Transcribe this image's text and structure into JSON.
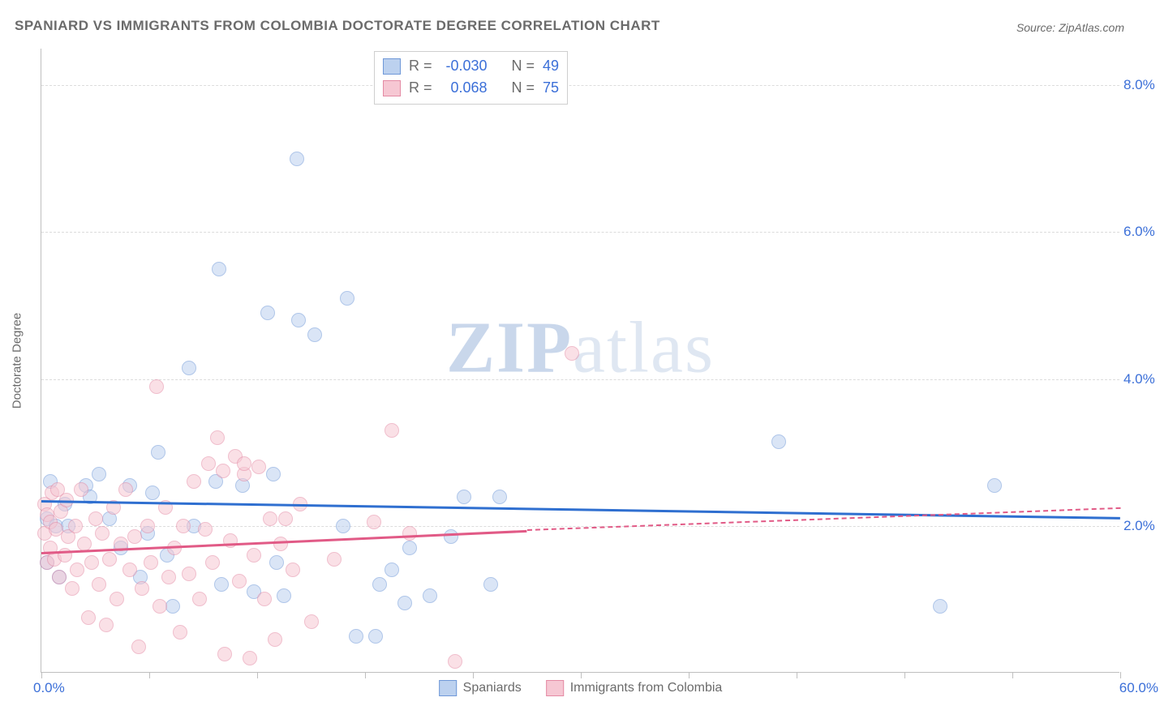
{
  "title": "SPANIARD VS IMMIGRANTS FROM COLOMBIA DOCTORATE DEGREE CORRELATION CHART",
  "source": "Source: ZipAtlas.com",
  "watermark": {
    "bold": "ZIP",
    "light": "atlas"
  },
  "y_axis_title": "Doctorate Degree",
  "chart": {
    "type": "scatter",
    "xlim": [
      0,
      60
    ],
    "ylim": [
      0,
      8.5
    ],
    "x_min_label": "0.0%",
    "x_max_label": "60.0%",
    "x_label_color": "#3b6fd8",
    "y_ticks": [
      {
        "value": 2.0,
        "label": "2.0%"
      },
      {
        "value": 4.0,
        "label": "4.0%"
      },
      {
        "value": 6.0,
        "label": "6.0%"
      },
      {
        "value": 8.0,
        "label": "8.0%"
      }
    ],
    "y_tick_color": "#3b6fd8",
    "x_tick_positions": [
      0,
      6,
      12,
      18,
      24,
      30,
      36,
      42,
      48,
      54,
      60
    ],
    "background_color": "#ffffff",
    "grid_color": "#dcdcdc",
    "marker_radius": 9,
    "marker_opacity": 0.55,
    "series": [
      {
        "name": "Spaniards",
        "fill": "#bcd1ef",
        "stroke": "#6f98d8",
        "trend_color": "#2f6fd0",
        "trend": {
          "x1": 0,
          "y1": 2.35,
          "x2": 60,
          "y2": 2.12
        },
        "stats": {
          "R": "-0.030",
          "N": "49"
        },
        "points": [
          [
            0.3,
            1.5
          ],
          [
            0.3,
            2.1
          ],
          [
            0.5,
            2.6
          ],
          [
            0.8,
            2.0
          ],
          [
            1.0,
            1.3
          ],
          [
            1.3,
            2.3
          ],
          [
            1.5,
            2.0
          ],
          [
            2.5,
            2.55
          ],
          [
            2.7,
            2.4
          ],
          [
            3.2,
            2.7
          ],
          [
            3.8,
            2.1
          ],
          [
            4.4,
            1.7
          ],
          [
            4.9,
            2.55
          ],
          [
            5.5,
            1.3
          ],
          [
            5.9,
            1.9
          ],
          [
            6.2,
            2.45
          ],
          [
            6.5,
            3.0
          ],
          [
            7.0,
            1.6
          ],
          [
            7.3,
            0.9
          ],
          [
            8.2,
            4.15
          ],
          [
            8.5,
            2.0
          ],
          [
            9.7,
            2.6
          ],
          [
            9.9,
            5.5
          ],
          [
            10.0,
            1.2
          ],
          [
            11.2,
            2.55
          ],
          [
            11.8,
            1.1
          ],
          [
            12.6,
            4.9
          ],
          [
            12.9,
            2.7
          ],
          [
            13.1,
            1.5
          ],
          [
            13.5,
            1.05
          ],
          [
            14.2,
            7.0
          ],
          [
            14.3,
            4.8
          ],
          [
            15.2,
            4.6
          ],
          [
            16.8,
            2.0
          ],
          [
            17.0,
            5.1
          ],
          [
            17.5,
            0.5
          ],
          [
            18.6,
            0.5
          ],
          [
            18.8,
            1.2
          ],
          [
            19.5,
            1.4
          ],
          [
            20.2,
            0.95
          ],
          [
            20.5,
            1.7
          ],
          [
            21.6,
            1.05
          ],
          [
            22.8,
            1.85
          ],
          [
            23.5,
            2.4
          ],
          [
            25.0,
            1.2
          ],
          [
            25.5,
            2.4
          ],
          [
            41.0,
            3.15
          ],
          [
            50.0,
            0.9
          ],
          [
            53.0,
            2.55
          ]
        ]
      },
      {
        "name": "Immigrants from Colombia",
        "fill": "#f6c7d3",
        "stroke": "#e48aa4",
        "trend_color": "#e15a86",
        "trend": {
          "x1": 0,
          "y1": 1.65,
          "x2": 27,
          "y2": 1.95
        },
        "trend_dash": {
          "x1": 27,
          "y1": 1.95,
          "x2": 60,
          "y2": 2.25
        },
        "stats": {
          "R": "0.068",
          "N": "75"
        },
        "points": [
          [
            0.2,
            1.9
          ],
          [
            0.2,
            2.3
          ],
          [
            0.3,
            1.5
          ],
          [
            0.3,
            2.15
          ],
          [
            0.5,
            1.7
          ],
          [
            0.5,
            2.05
          ],
          [
            0.6,
            2.45
          ],
          [
            0.7,
            1.55
          ],
          [
            0.8,
            1.95
          ],
          [
            0.9,
            2.5
          ],
          [
            1.0,
            1.3
          ],
          [
            1.1,
            2.2
          ],
          [
            1.3,
            1.6
          ],
          [
            1.4,
            2.35
          ],
          [
            1.5,
            1.85
          ],
          [
            1.7,
            1.15
          ],
          [
            1.9,
            2.0
          ],
          [
            2.0,
            1.4
          ],
          [
            2.2,
            2.5
          ],
          [
            2.4,
            1.75
          ],
          [
            2.6,
            0.75
          ],
          [
            2.8,
            1.5
          ],
          [
            3.0,
            2.1
          ],
          [
            3.2,
            1.2
          ],
          [
            3.4,
            1.9
          ],
          [
            3.6,
            0.65
          ],
          [
            3.8,
            1.55
          ],
          [
            4.0,
            2.25
          ],
          [
            4.2,
            1.0
          ],
          [
            4.4,
            1.75
          ],
          [
            4.7,
            2.5
          ],
          [
            4.9,
            1.4
          ],
          [
            5.2,
            1.85
          ],
          [
            5.4,
            0.35
          ],
          [
            5.6,
            1.15
          ],
          [
            5.9,
            2.0
          ],
          [
            6.1,
            1.5
          ],
          [
            6.4,
            3.9
          ],
          [
            6.6,
            0.9
          ],
          [
            6.9,
            2.25
          ],
          [
            7.1,
            1.3
          ],
          [
            7.4,
            1.7
          ],
          [
            7.7,
            0.55
          ],
          [
            7.9,
            2.0
          ],
          [
            8.2,
            1.35
          ],
          [
            8.5,
            2.6
          ],
          [
            8.8,
            1.0
          ],
          [
            9.1,
            1.95
          ],
          [
            9.3,
            2.85
          ],
          [
            9.5,
            1.5
          ],
          [
            9.8,
            3.2
          ],
          [
            10.1,
            2.75
          ],
          [
            10.2,
            0.25
          ],
          [
            10.5,
            1.8
          ],
          [
            10.8,
            2.95
          ],
          [
            11.0,
            1.25
          ],
          [
            11.3,
            2.7
          ],
          [
            11.3,
            2.85
          ],
          [
            11.6,
            0.2
          ],
          [
            11.8,
            1.6
          ],
          [
            12.1,
            2.8
          ],
          [
            12.4,
            1.0
          ],
          [
            12.7,
            2.1
          ],
          [
            13.0,
            0.45
          ],
          [
            13.3,
            1.75
          ],
          [
            13.6,
            2.1
          ],
          [
            14.0,
            1.4
          ],
          [
            14.4,
            2.3
          ],
          [
            15.0,
            0.7
          ],
          [
            16.3,
            1.55
          ],
          [
            18.5,
            2.05
          ],
          [
            19.5,
            3.3
          ],
          [
            20.5,
            1.9
          ],
          [
            23.0,
            0.15
          ],
          [
            29.5,
            4.35
          ]
        ]
      }
    ]
  },
  "legend": {
    "series1_label": "Spaniards",
    "series2_label": "Immigrants from Colombia"
  }
}
